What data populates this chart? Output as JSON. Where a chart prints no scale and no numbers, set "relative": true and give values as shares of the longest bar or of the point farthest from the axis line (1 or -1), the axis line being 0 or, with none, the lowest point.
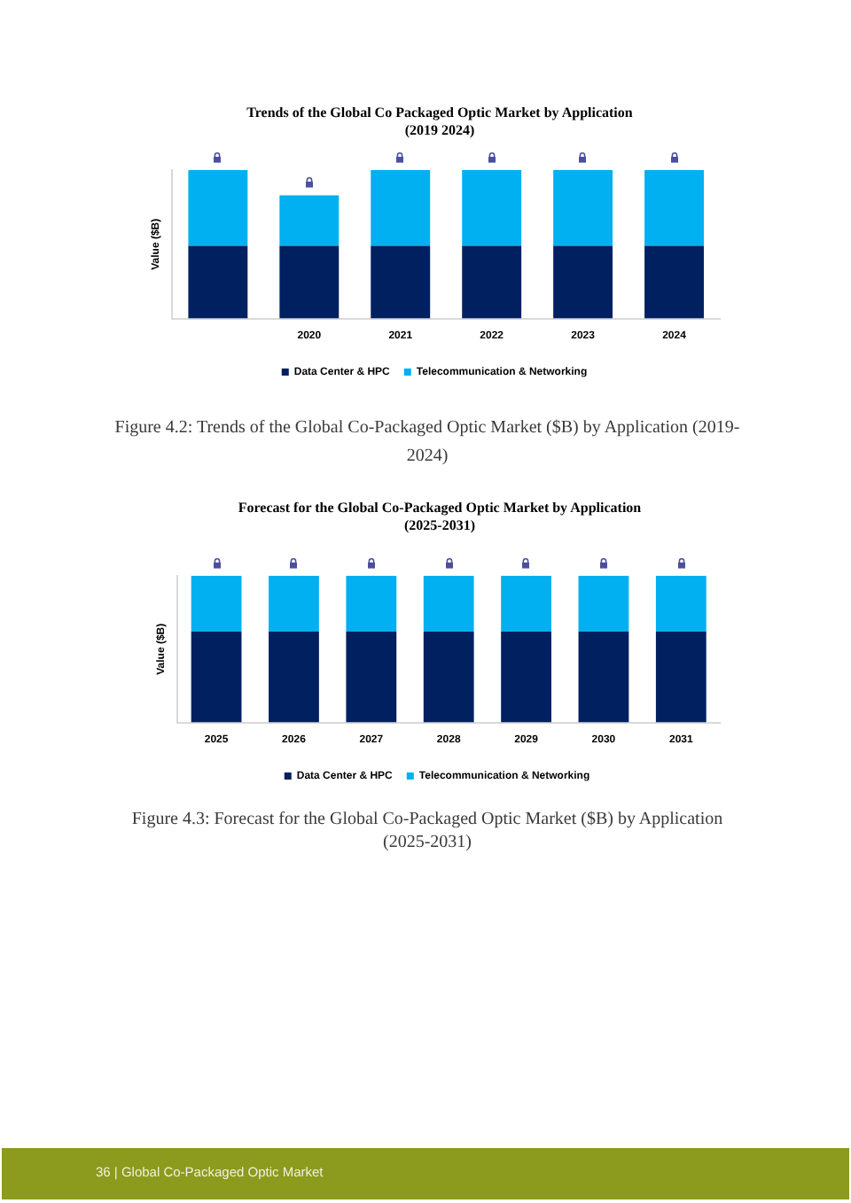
{
  "chart_data": [
    {
      "type": "bar",
      "title": "Trends of the Global Co Packaged Optic Market by Application (2019 2024)",
      "ylabel": "Value ($B)",
      "categories": [
        null,
        "2020",
        "2021",
        "2022",
        "2023",
        "2024"
      ],
      "series": [
        {
          "name": "Data Center & HPC",
          "color": "#002060",
          "values": [
            0.49,
            0.49,
            0.49,
            0.49,
            0.49,
            0.49
          ]
        },
        {
          "name": "Telecommunication & Networking",
          "color": "#00b0f0",
          "values": [
            0.51,
            0.34,
            0.51,
            0.51,
            0.51,
            0.51
          ]
        }
      ],
      "stacked": true,
      "relative": true,
      "legend": "bottom",
      "annotations": [
        "Figure 4.2: Trends of the Global Co-Packaged Optic Market ($B) by Application (2019-2024)"
      ]
    },
    {
      "type": "bar",
      "title": "Forecast for the Global Co-Packaged Optic Market by Application (2025-2031)",
      "ylabel": "Value ($B)",
      "categories": [
        "2025",
        "2026",
        "2027",
        "2028",
        "2029",
        "2030",
        "2031"
      ],
      "series": [
        {
          "name": "Data Center & HPC",
          "color": "#002060",
          "values": [
            0.62,
            0.62,
            0.62,
            0.62,
            0.62,
            0.62,
            0.62
          ]
        },
        {
          "name": "Telecommunication & Networking",
          "color": "#00b0f0",
          "values": [
            0.38,
            0.38,
            0.38,
            0.38,
            0.38,
            0.38,
            0.38
          ]
        }
      ],
      "stacked": true,
      "relative": true,
      "legend": "bottom",
      "annotations": [
        "Figure 4.3: Forecast for the Global Co-Packaged Optic Market ($B) by Application (2025-2031)",
        "36 | Global Co-Packaged Optic Market"
      ]
    }
  ]
}
